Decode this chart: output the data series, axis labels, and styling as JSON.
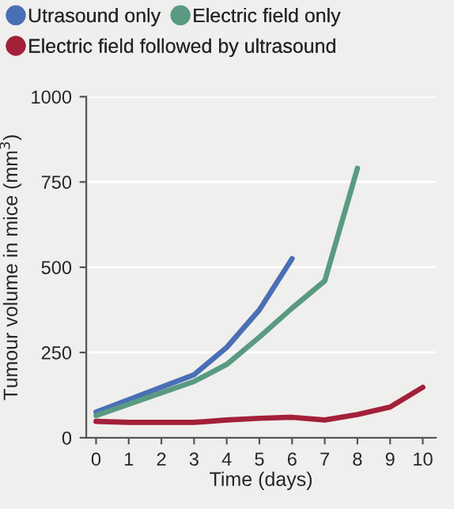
{
  "chart_data": {
    "type": "line",
    "xlabel": "Time (days)",
    "ylabel": "Tumour volume in mice (mm$^{3}$)",
    "x": [
      0,
      1,
      2,
      3,
      4,
      5,
      6,
      7,
      8,
      9,
      10
    ],
    "series": [
      {
        "name": "Utrasound only",
        "color": "#4a6fb5",
        "values": [
          75,
          null,
          null,
          185,
          265,
          375,
          525,
          null,
          null,
          null,
          null
        ]
      },
      {
        "name": "Electric field only",
        "color": "#5a9a82",
        "values": [
          65,
          null,
          null,
          165,
          215,
          295,
          380,
          460,
          790,
          null,
          null
        ]
      },
      {
        "name": "Electric field followed by ultrasound",
        "color": "#a3203a",
        "values": [
          48,
          45,
          45,
          45,
          52,
          57,
          60,
          52,
          68,
          90,
          148
        ]
      }
    ],
    "xlim": [
      -0.3,
      10.4
    ],
    "xticks": [
      0,
      1,
      2,
      3,
      4,
      5,
      6,
      7,
      8,
      9,
      10
    ],
    "ylim": [
      0,
      1000
    ],
    "yticks": [
      0,
      250,
      500,
      750,
      1000
    ],
    "grid": "y",
    "legend": "top",
    "marker": "none",
    "line_style": "solid"
  }
}
